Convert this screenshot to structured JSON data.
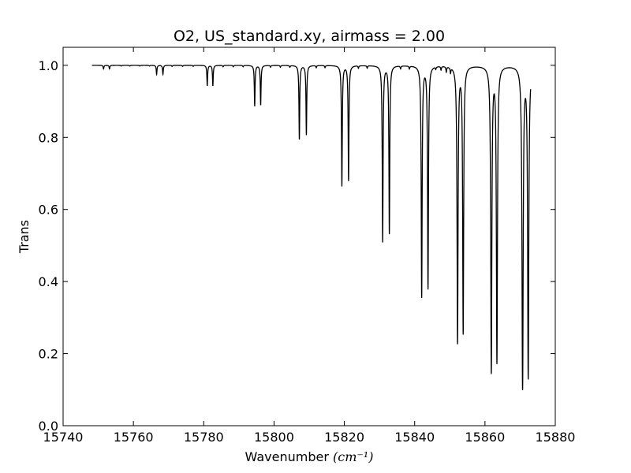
{
  "chart_data": {
    "type": "line",
    "title": "O2, US_standard.xy, airmass = 2.00",
    "xlabel": "Wavenumber",
    "xlabel_unit": "(cm⁻¹)",
    "ylabel": "Trans",
    "xlim": [
      15740,
      15880
    ],
    "ylim": [
      0.0,
      1.05
    ],
    "xticks": [
      15740,
      15760,
      15780,
      15800,
      15820,
      15840,
      15860,
      15880
    ],
    "xtick_labels": [
      "15740",
      "15760",
      "15780",
      "15800",
      "15820",
      "15840",
      "15860",
      "15880"
    ],
    "yticks": [
      0.0,
      0.2,
      0.4,
      0.6,
      0.8,
      1.0
    ],
    "ytick_labels": [
      "0.0",
      "0.2",
      "0.4",
      "0.6",
      "0.8",
      "1.0"
    ],
    "grid": false,
    "line_color": "#000000",
    "series": [
      {
        "x_range": [
          15748.2,
          15873.0
        ],
        "baseline": 1.0,
        "absorption_lines": [
          {
            "x": 15751.5,
            "min": 0.99
          },
          {
            "x": 15753.2,
            "min": 0.99
          },
          {
            "x": 15756.5,
            "min": 0.998
          },
          {
            "x": 15759.0,
            "min": 0.998
          },
          {
            "x": 15761.8,
            "min": 0.998
          },
          {
            "x": 15764.6,
            "min": 0.998
          },
          {
            "x": 15766.6,
            "min": 0.975
          },
          {
            "x": 15768.4,
            "min": 0.975
          },
          {
            "x": 15771.0,
            "min": 0.997
          },
          {
            "x": 15774.0,
            "min": 0.997
          },
          {
            "x": 15777.0,
            "min": 0.997
          },
          {
            "x": 15781.0,
            "min": 0.943
          },
          {
            "x": 15782.6,
            "min": 0.943
          },
          {
            "x": 15785.5,
            "min": 0.996
          },
          {
            "x": 15788.4,
            "min": 0.996
          },
          {
            "x": 15791.2,
            "min": 0.996
          },
          {
            "x": 15794.5,
            "min": 0.887
          },
          {
            "x": 15796.2,
            "min": 0.89
          },
          {
            "x": 15799.0,
            "min": 0.995
          },
          {
            "x": 15801.8,
            "min": 0.995
          },
          {
            "x": 15804.5,
            "min": 0.995
          },
          {
            "x": 15807.2,
            "min": 0.795
          },
          {
            "x": 15809.2,
            "min": 0.807
          },
          {
            "x": 15812.0,
            "min": 0.994
          },
          {
            "x": 15814.5,
            "min": 0.994
          },
          {
            "x": 15819.3,
            "min": 0.665
          },
          {
            "x": 15821.2,
            "min": 0.68
          },
          {
            "x": 15824.0,
            "min": 0.993
          },
          {
            "x": 15826.5,
            "min": 0.993
          },
          {
            "x": 15830.9,
            "min": 0.51
          },
          {
            "x": 15832.8,
            "min": 0.533
          },
          {
            "x": 15836.0,
            "min": 0.992
          },
          {
            "x": 15838.5,
            "min": 0.992
          },
          {
            "x": 15842.0,
            "min": 0.356
          },
          {
            "x": 15843.8,
            "min": 0.38
          },
          {
            "x": 15846.0,
            "min": 0.993
          },
          {
            "x": 15847.5,
            "min": 0.99
          },
          {
            "x": 15849.0,
            "min": 0.985
          },
          {
            "x": 15850.2,
            "min": 0.985
          },
          {
            "x": 15852.2,
            "min": 0.228
          },
          {
            "x": 15853.8,
            "min": 0.255
          },
          {
            "x": 15861.8,
            "min": 0.145
          },
          {
            "x": 15863.4,
            "min": 0.173
          },
          {
            "x": 15870.7,
            "min": 0.1
          },
          {
            "x": 15872.3,
            "min": 0.13
          }
        ]
      }
    ]
  }
}
